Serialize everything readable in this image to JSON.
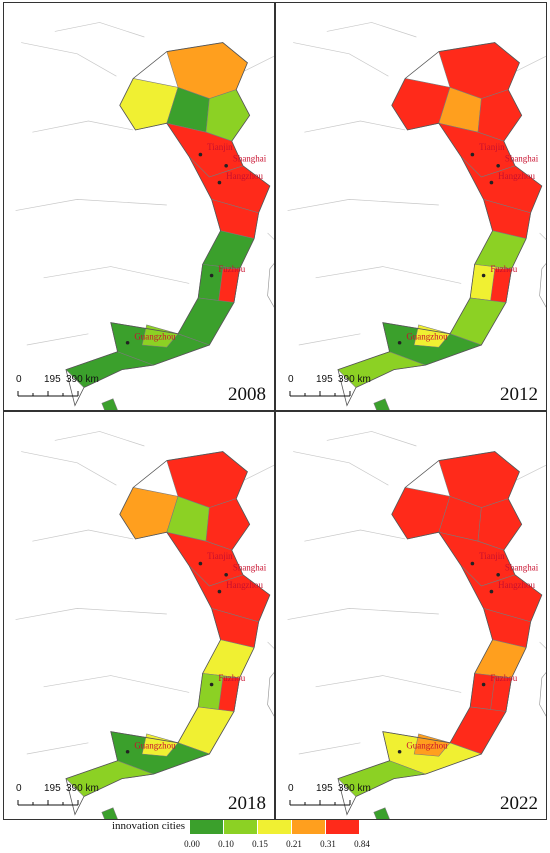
{
  "map": {
    "scale_labels": [
      "0",
      "195",
      "390 km"
    ],
    "panels": [
      {
        "year": "2008",
        "shades": [
          "c3",
          "c2",
          "c0",
          "c1",
          "c4",
          "c5",
          "c5",
          "c0",
          "c0",
          "c5",
          "c0",
          "c0",
          "c0",
          "c1"
        ]
      },
      {
        "year": "2012",
        "shades": [
          "c4",
          "c4",
          "c3",
          "c4",
          "c5",
          "c5",
          "c5",
          "c1",
          "c2",
          "c5",
          "c1",
          "c0",
          "c1",
          "c2"
        ]
      },
      {
        "year": "2018",
        "shades": [
          "c4",
          "c3",
          "c1",
          "c4",
          "c5",
          "c5",
          "c4",
          "c2",
          "c1",
          "c5",
          "c2",
          "c0",
          "c1",
          "c2"
        ]
      },
      {
        "year": "2022",
        "shades": [
          "c5",
          "c5",
          "c4",
          "c5",
          "c5",
          "c5",
          "c5",
          "c3",
          "c4",
          "c5",
          "c4",
          "c2",
          "c1",
          "c3"
        ]
      }
    ],
    "cities": [
      {
        "name": "Tianjin"
      },
      {
        "name": "Shanghai"
      },
      {
        "name": "Hangzhou"
      },
      {
        "name": "Fuzhou"
      },
      {
        "name": "Guangzhou"
      }
    ]
  },
  "legend": {
    "title": "innovation cities",
    "colors": [
      "#3ba02c",
      "#8cd124",
      "#f0f032",
      "#ff9f1e",
      "#ff2a1a"
    ],
    "ticks": [
      "0.00",
      "0.10",
      "0.15",
      "0.21",
      "0.31",
      "0.84"
    ]
  }
}
